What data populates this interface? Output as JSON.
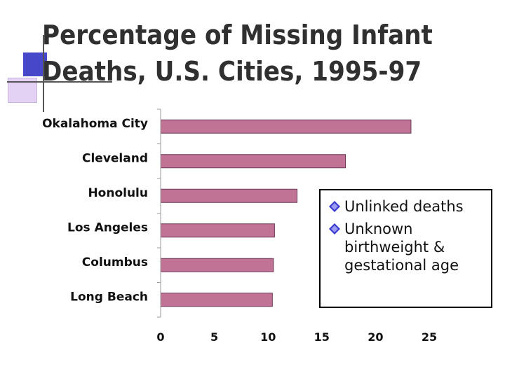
{
  "title": {
    "line1": "Percentage of Missing Infant",
    "line2": "Deaths, U.S. Cities, 1995-97"
  },
  "legend": {
    "items": [
      {
        "text": "Unlinked deaths"
      },
      {
        "text": "Unknown birthweight & gestational age"
      }
    ]
  },
  "colors": {
    "bar_fill": "#c17396",
    "bar_stroke": "#6e3a58",
    "accent_blue": "#4747c9",
    "accent_lilac": "#e3d2f3"
  },
  "chart_data": {
    "type": "bar",
    "orientation": "horizontal",
    "categories": [
      "Okalahoma City",
      "Cleveland",
      "Honolulu",
      "Los Angeles",
      "Columbus",
      "Long Beach"
    ],
    "values": [
      23.3,
      17.2,
      12.7,
      10.6,
      10.5,
      10.4
    ],
    "xlim": [
      0,
      25
    ],
    "xticks": [
      0,
      5,
      10,
      15,
      20,
      25
    ],
    "xlabel": "",
    "ylabel": "",
    "grid": false,
    "legend_placement": "right"
  }
}
